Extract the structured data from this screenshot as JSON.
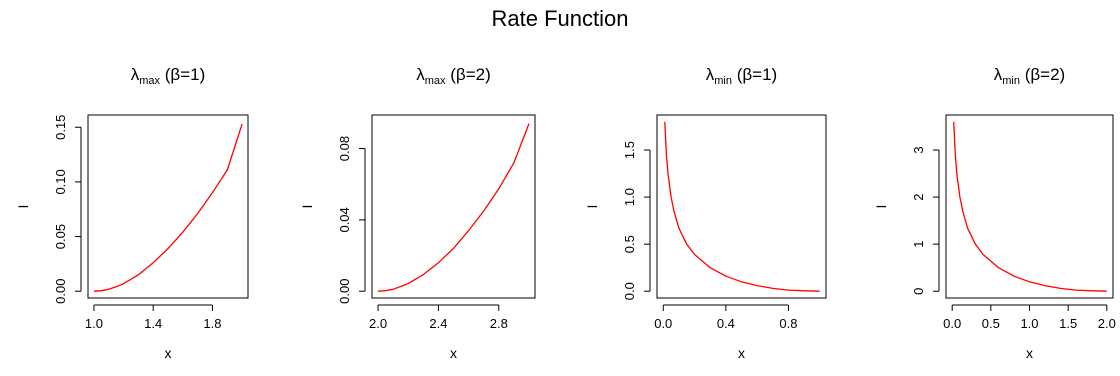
{
  "figure": {
    "title": "Rate Function"
  },
  "chart_data": [
    {
      "type": "line",
      "title": {
        "sym": "λ",
        "sub": "max",
        "rest": " (β=1)"
      },
      "xlabel": "x",
      "ylabel": "I",
      "xlim": [
        1.0,
        2.0
      ],
      "ylim": [
        0.0,
        0.155
      ],
      "xticks": [
        1.0,
        1.4,
        1.8
      ],
      "xticklabels": [
        "1.0",
        "1.4",
        "1.8"
      ],
      "yticks": [
        0.0,
        0.05,
        0.1,
        0.15
      ],
      "yticklabels": [
        "0.00",
        "0.05",
        "0.10",
        "0.15"
      ],
      "grid": false,
      "series": [
        {
          "color": "#ff0000",
          "x": [
            1.0,
            1.05,
            1.1,
            1.15,
            1.2,
            1.3,
            1.4,
            1.5,
            1.6,
            1.7,
            1.8,
            1.9,
            2.0
          ],
          "y": [
            0.0,
            0.0005,
            0.0018,
            0.004,
            0.007,
            0.015,
            0.026,
            0.039,
            0.054,
            0.071,
            0.09,
            0.111,
            0.153
          ]
        }
      ]
    },
    {
      "type": "line",
      "title": {
        "sym": "λ",
        "sub": "max",
        "rest": " (β=2)"
      },
      "xlabel": "x",
      "ylabel": "I",
      "xlim": [
        2.0,
        3.0
      ],
      "ylim": [
        0.0,
        0.095
      ],
      "xticks": [
        2.0,
        2.4,
        2.8
      ],
      "xticklabels": [
        "2.0",
        "2.4",
        "2.8"
      ],
      "yticks": [
        0.0,
        0.04,
        0.08
      ],
      "yticklabels": [
        "0.00",
        "0.04",
        "0.08"
      ],
      "grid": false,
      "series": [
        {
          "color": "#ff0000",
          "x": [
            2.0,
            2.05,
            2.1,
            2.2,
            2.3,
            2.4,
            2.5,
            2.6,
            2.7,
            2.8,
            2.9,
            3.0
          ],
          "y": [
            0.0,
            0.0003,
            0.0011,
            0.0043,
            0.0093,
            0.016,
            0.024,
            0.034,
            0.045,
            0.0575,
            0.072,
            0.094
          ]
        }
      ]
    },
    {
      "type": "line",
      "title": {
        "sym": "λ",
        "sub": "min",
        "rest": " (β=1)"
      },
      "xlabel": "x",
      "ylabel": "I",
      "xlim": [
        0.0,
        1.0
      ],
      "ylim": [
        0.0,
        1.8
      ],
      "xticks": [
        0.0,
        0.4,
        0.8
      ],
      "xticklabels": [
        "0.0",
        "0.4",
        "0.8"
      ],
      "yticks": [
        0.0,
        0.5,
        1.0,
        1.5
      ],
      "yticklabels": [
        "0.0",
        "0.5",
        "1.0",
        "1.5"
      ],
      "grid": false,
      "series": [
        {
          "color": "#ff0000",
          "x": [
            0.01,
            0.02,
            0.03,
            0.05,
            0.07,
            0.1,
            0.15,
            0.2,
            0.3,
            0.4,
            0.5,
            0.6,
            0.7,
            0.8,
            0.9,
            1.0
          ],
          "y": [
            1.8,
            1.45,
            1.25,
            1.0,
            0.84,
            0.67,
            0.5,
            0.39,
            0.25,
            0.16,
            0.1,
            0.06,
            0.03,
            0.012,
            0.004,
            0.0
          ]
        }
      ]
    },
    {
      "type": "line",
      "title": {
        "sym": "λ",
        "sub": "min",
        "rest": " (β=2)"
      },
      "xlabel": "x",
      "ylabel": "I",
      "xlim": [
        0.0,
        2.0
      ],
      "ylim": [
        0.0,
        3.6
      ],
      "xticks": [
        0.0,
        0.5,
        1.0,
        1.5,
        2.0
      ],
      "xticklabels": [
        "0.0",
        "0.5",
        "1.0",
        "1.5",
        "2.0"
      ],
      "yticks": [
        0,
        1,
        2,
        3
      ],
      "yticklabels": [
        "0",
        "1",
        "2",
        "3"
      ],
      "grid": false,
      "series": [
        {
          "color": "#ff0000",
          "x": [
            0.02,
            0.04,
            0.06,
            0.1,
            0.14,
            0.2,
            0.3,
            0.4,
            0.6,
            0.8,
            1.0,
            1.2,
            1.4,
            1.6,
            1.8,
            2.0
          ],
          "y": [
            3.6,
            2.9,
            2.5,
            2.0,
            1.68,
            1.34,
            1.0,
            0.78,
            0.5,
            0.32,
            0.2,
            0.12,
            0.06,
            0.024,
            0.008,
            0.0
          ]
        }
      ]
    }
  ]
}
